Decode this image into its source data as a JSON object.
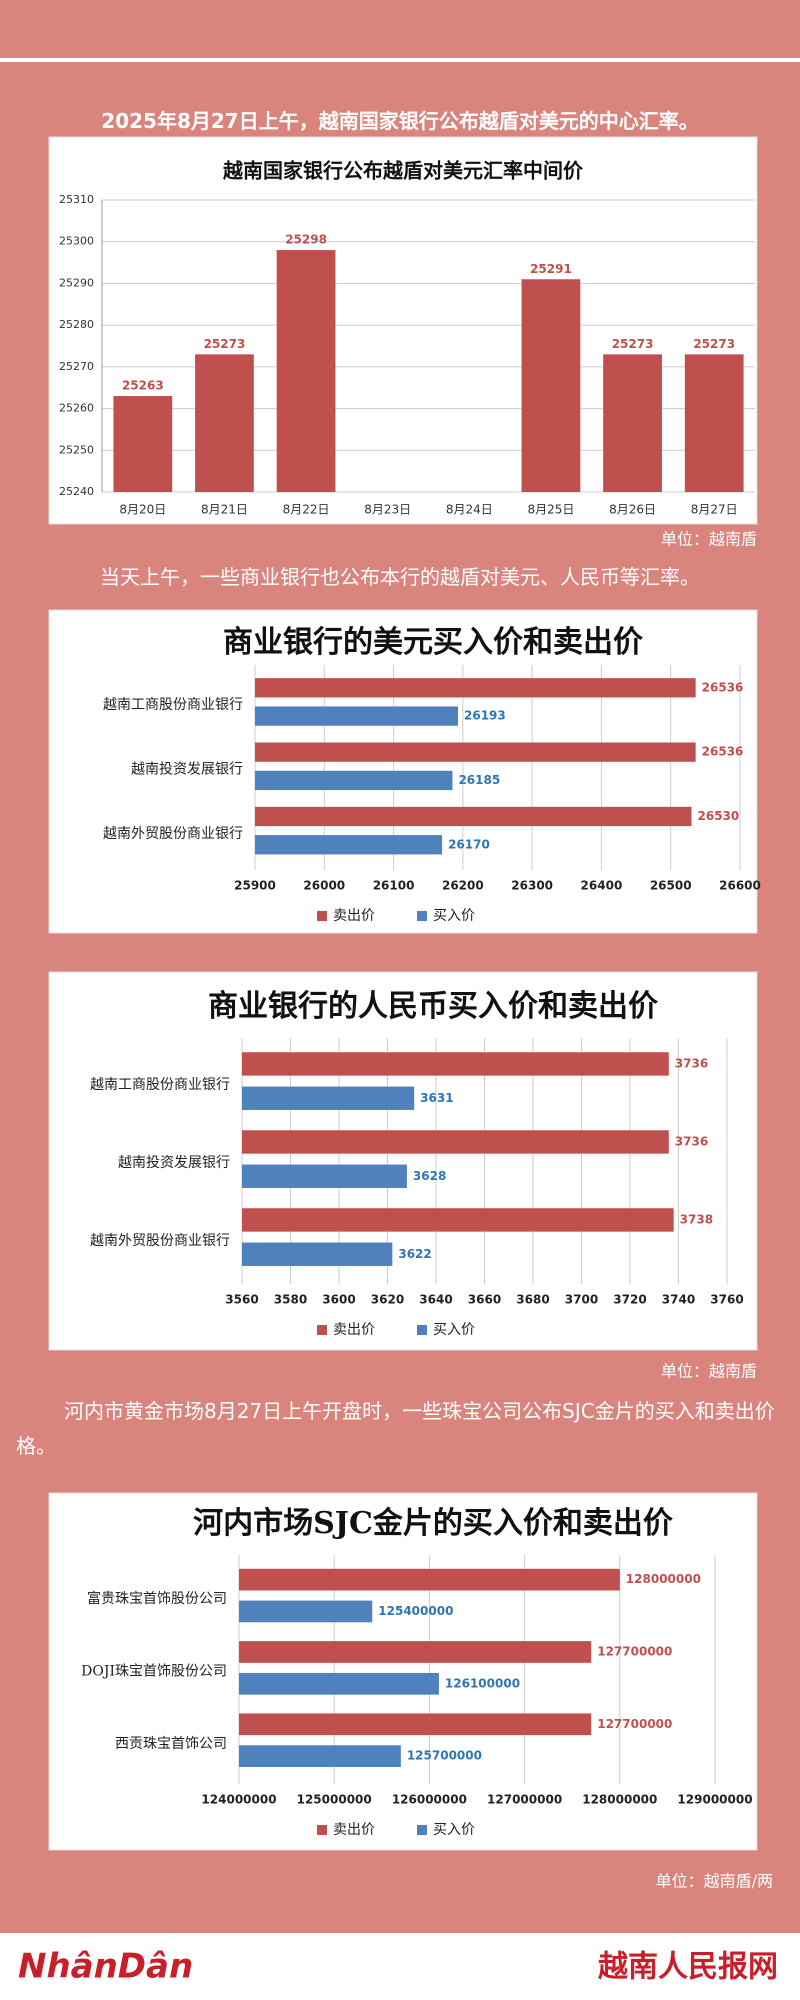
{
  "intro": [
    "2025年8月27日上午，越南国家银行公布越盾对美元的中心汇率。",
    "当天上午，一些商业银行也公布本行的越盾对美元、人民币等汇率。",
    "河内市黄金市场8月27日上午开盘时，一些珠宝公司公布SJC金片的买入和卖出价格。"
  ],
  "units": [
    "单位：越南盾",
    "单位：越南盾",
    "单位：越南盾/两"
  ],
  "footer": {
    "left": "NhânDân",
    "right": "越南人民报网"
  },
  "chart_data": [
    {
      "type": "bar",
      "title": "越南国家银行公布越盾对美元汇率中间价",
      "categories": [
        "8月20日",
        "8月21日",
        "8月22日",
        "8月23日",
        "8月24日",
        "8月25日",
        "8月26日",
        "8月27日"
      ],
      "values": [
        25263,
        25273,
        25298,
        null,
        null,
        25291,
        25273,
        25273
      ],
      "color": "#c0504d",
      "ylim": [
        25240,
        25310
      ],
      "yticks": [
        25240,
        25250,
        25260,
        25270,
        25280,
        25290,
        25300,
        25310
      ],
      "grid": true
    },
    {
      "type": "hbar",
      "title": "商业银行的美元买入价和卖出价",
      "categories": [
        "越南工商股份商业银行",
        "越南投资发展银行",
        "越南外贸股份商业银行"
      ],
      "series": [
        {
          "name": "卖出价",
          "color": "#c0504d",
          "values": [
            26536,
            26536,
            26530
          ]
        },
        {
          "name": "买入价",
          "color": "#4f81bd",
          "values": [
            26193,
            26185,
            26170
          ]
        }
      ],
      "xlim": [
        25900,
        26600
      ],
      "xticks": [
        25900,
        26000,
        26100,
        26200,
        26300,
        26400,
        26500,
        26600
      ],
      "grid": true,
      "legend": "bottom"
    },
    {
      "type": "hbar",
      "title": "商业银行的人民币买入价和卖出价",
      "categories": [
        "越南工商股份商业银行",
        "越南投资发展银行",
        "越南外贸股份商业银行"
      ],
      "series": [
        {
          "name": "卖出价",
          "color": "#c0504d",
          "values": [
            3736,
            3736,
            3738
          ]
        },
        {
          "name": "买入价",
          "color": "#4f81bd",
          "values": [
            3631,
            3628,
            3622
          ]
        }
      ],
      "xlim": [
        3560,
        3760
      ],
      "xticks": [
        3560,
        3580,
        3600,
        3620,
        3640,
        3660,
        3680,
        3700,
        3720,
        3740,
        3760
      ],
      "grid": true,
      "legend": "bottom"
    },
    {
      "type": "hbar",
      "title": "河内市场SJC金片的买入价和卖出价",
      "categories": [
        "富贵珠宝首饰股份公司",
        "DOJI珠宝首饰股份公司",
        "西贡珠宝首饰公司"
      ],
      "series": [
        {
          "name": "卖出价",
          "color": "#c0504d",
          "values": [
            128000000,
            127700000,
            127700000
          ]
        },
        {
          "name": "买入价",
          "color": "#4f81bd",
          "values": [
            125400000,
            126100000,
            125700000
          ]
        }
      ],
      "xlim": [
        124000000,
        129000000
      ],
      "xticks": [
        124000000,
        125000000,
        126000000,
        127000000,
        128000000,
        129000000
      ],
      "grid": true,
      "legend": "bottom"
    }
  ]
}
